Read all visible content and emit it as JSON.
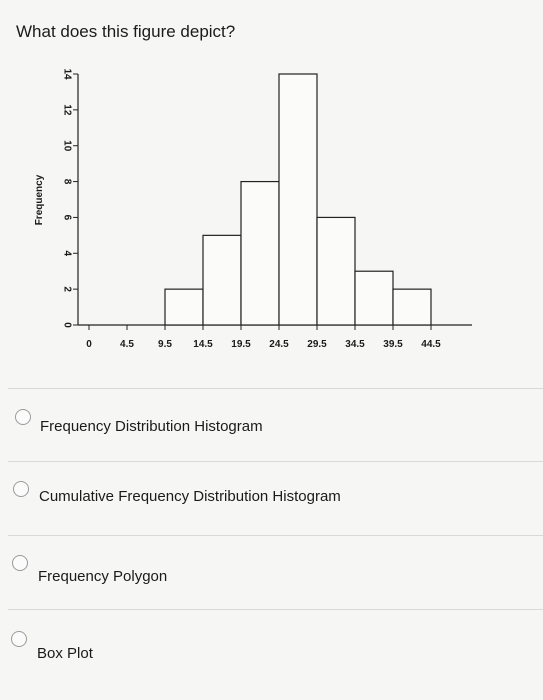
{
  "question": {
    "text": "What does this figure depict?"
  },
  "chart_data": {
    "type": "bar",
    "ylabel": "Frequency",
    "xlabel": "",
    "categories": [
      "4.5–9.5",
      "9.5–14.5",
      "14.5–19.5",
      "19.5–24.5",
      "24.5–29.5",
      "29.5–34.5",
      "34.5–39.5",
      "39.5–44.5"
    ],
    "values": [
      0,
      2,
      5,
      8,
      14,
      6,
      3,
      2
    ],
    "x_ticks": [
      "0",
      "4.5",
      "9.5",
      "14.5",
      "19.5",
      "24.5",
      "29.5",
      "34.5",
      "39.5",
      "44.5"
    ],
    "y_ticks": [
      "0",
      "2",
      "4",
      "6",
      "8",
      "10",
      "12",
      "14"
    ],
    "ylim": [
      0,
      14
    ],
    "grid": false
  },
  "options": [
    {
      "label": "Frequency Distribution Histogram"
    },
    {
      "label": "Cumulative Frequency Distribution Histogram"
    },
    {
      "label": "Frequency Polygon"
    },
    {
      "label": "Box Plot"
    }
  ]
}
